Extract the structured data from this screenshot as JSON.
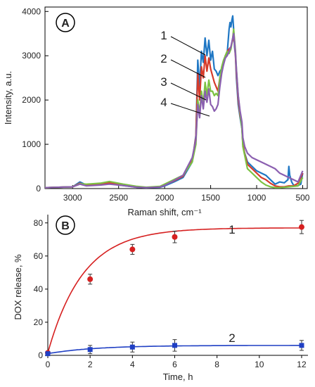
{
  "chart_data": [
    {
      "panel_label": "A",
      "type": "line",
      "xlabel": "Raman shift, cm⁻¹",
      "ylabel": "Intensity, a.u.",
      "xlim": [
        3300,
        450
      ],
      "ylim": [
        0,
        4100
      ],
      "x_reversed": true,
      "x_ticks": [
        3000,
        2500,
        2000,
        1500,
        1000,
        500
      ],
      "y_ticks": [
        0,
        1000,
        2000,
        3000,
        4000
      ],
      "grid": false,
      "series": [
        {
          "name": "1",
          "color": "#1f77c4",
          "x": [
            3300,
            3000,
            2920,
            2850,
            2700,
            2600,
            2450,
            2300,
            2200,
            2050,
            2000,
            1900,
            1800,
            1700,
            1660,
            1640,
            1620,
            1600,
            1580,
            1560,
            1540,
            1520,
            1500,
            1480,
            1460,
            1440,
            1420,
            1400,
            1380,
            1360,
            1340,
            1320,
            1300,
            1290,
            1280,
            1270,
            1260,
            1250,
            1240,
            1230,
            1220,
            1200,
            1180,
            1160,
            1150,
            1130,
            1100,
            1050,
            1000,
            950,
            900,
            850,
            800,
            750,
            700,
            660,
            650,
            640,
            620,
            600,
            560,
            520,
            500
          ],
          "y": [
            20,
            40,
            150,
            80,
            90,
            110,
            70,
            30,
            20,
            30,
            60,
            150,
            250,
            600,
            1200,
            2900,
            2300,
            3100,
            2850,
            3400,
            3000,
            3350,
            2900,
            3100,
            2700,
            2650,
            2550,
            2650,
            2700,
            2800,
            3000,
            3050,
            3600,
            3750,
            3650,
            3800,
            3900,
            3600,
            3200,
            3000,
            2500,
            1900,
            1600,
            1350,
            1000,
            800,
            600,
            500,
            400,
            350,
            300,
            200,
            100,
            150,
            130,
            200,
            500,
            300,
            150,
            80,
            60,
            100,
            350
          ]
        },
        {
          "name": "2",
          "color": "#d63b2a",
          "x": [
            3300,
            3000,
            2920,
            2850,
            2700,
            2600,
            2450,
            2300,
            2200,
            2050,
            2000,
            1900,
            1800,
            1700,
            1660,
            1640,
            1620,
            1600,
            1580,
            1560,
            1540,
            1520,
            1500,
            1480,
            1460,
            1440,
            1420,
            1400,
            1380,
            1360,
            1340,
            1320,
            1300,
            1280,
            1260,
            1250,
            1240,
            1230,
            1220,
            1200,
            1180,
            1160,
            1150,
            1130,
            1100,
            1050,
            1000,
            950,
            900,
            850,
            800,
            750,
            700,
            650,
            600,
            550,
            500
          ],
          "y": [
            20,
            40,
            120,
            70,
            100,
            130,
            80,
            40,
            25,
            40,
            80,
            170,
            280,
            650,
            1150,
            2600,
            2000,
            2750,
            2500,
            3000,
            2650,
            2950,
            2700,
            2550,
            2400,
            2300,
            2200,
            2500,
            2700,
            2850,
            3000,
            3100,
            3150,
            3200,
            3350,
            3550,
            3300,
            3000,
            2600,
            2000,
            1650,
            1400,
            1000,
            780,
            550,
            450,
            350,
            250,
            200,
            120,
            60,
            40,
            40,
            60,
            60,
            120,
            350
          ]
        },
        {
          "name": "3",
          "color": "#7cc242",
          "x": [
            3300,
            3000,
            2920,
            2850,
            2700,
            2600,
            2450,
            2300,
            2200,
            2050,
            2000,
            1900,
            1800,
            1700,
            1660,
            1640,
            1620,
            1600,
            1580,
            1560,
            1540,
            1520,
            1500,
            1480,
            1460,
            1440,
            1420,
            1400,
            1380,
            1360,
            1340,
            1320,
            1300,
            1280,
            1260,
            1250,
            1240,
            1230,
            1220,
            1200,
            1180,
            1160,
            1150,
            1130,
            1100,
            1050,
            1000,
            950,
            900,
            850,
            800,
            750,
            700,
            650,
            600,
            550,
            500
          ],
          "y": [
            20,
            40,
            110,
            100,
            120,
            160,
            100,
            50,
            30,
            50,
            100,
            200,
            300,
            600,
            1000,
            2000,
            1700,
            2200,
            1900,
            2400,
            2100,
            2450,
            2200,
            2200,
            2100,
            2150,
            2100,
            2500,
            2750,
            2900,
            3000,
            3100,
            3050,
            3150,
            3400,
            3600,
            3350,
            3100,
            2700,
            2100,
            1700,
            1350,
            950,
            750,
            450,
            350,
            250,
            150,
            80,
            40,
            20,
            20,
            30,
            40,
            50,
            60,
            250
          ]
        },
        {
          "name": "4",
          "color": "#8b5fb0",
          "x": [
            3300,
            3000,
            2920,
            2850,
            2700,
            2600,
            2450,
            2300,
            2200,
            2050,
            2000,
            1900,
            1800,
            1700,
            1660,
            1640,
            1620,
            1600,
            1580,
            1560,
            1540,
            1520,
            1500,
            1480,
            1460,
            1440,
            1420,
            1400,
            1380,
            1360,
            1340,
            1320,
            1300,
            1280,
            1260,
            1250,
            1240,
            1230,
            1220,
            1200,
            1180,
            1160,
            1150,
            1130,
            1100,
            1050,
            1000,
            950,
            900,
            850,
            800,
            750,
            700,
            650,
            600,
            550,
            500
          ],
          "y": [
            20,
            40,
            100,
            60,
            80,
            100,
            70,
            30,
            20,
            35,
            70,
            180,
            300,
            700,
            1100,
            1900,
            1600,
            2100,
            1800,
            2200,
            1950,
            2250,
            1900,
            1850,
            1750,
            1800,
            1900,
            2300,
            2600,
            2800,
            2950,
            3000,
            3100,
            3200,
            3400,
            3500,
            3300,
            3050,
            2700,
            2100,
            1750,
            1500,
            1150,
            950,
            800,
            700,
            650,
            600,
            550,
            500,
            450,
            350,
            300,
            250,
            200,
            150,
            400
          ]
        }
      ]
    },
    {
      "panel_label": "B",
      "type": "scatter",
      "xlabel": "Time, h",
      "ylabel": "DOX release, %",
      "xlim": [
        0,
        12.3
      ],
      "ylim": [
        0,
        85
      ],
      "x_ticks": [
        0,
        2,
        4,
        6,
        8,
        10,
        12
      ],
      "y_ticks": [
        0,
        20,
        40,
        60,
        80
      ],
      "grid": false,
      "series": [
        {
          "name": "1",
          "color": "#d62020",
          "marker": "circle",
          "x": [
            0,
            2,
            4,
            6,
            12
          ],
          "y": [
            1.5,
            46,
            64,
            71.5,
            77.5
          ],
          "error": [
            1,
            3,
            3,
            3.5,
            4
          ],
          "fit": {
            "model": "exponential_rise",
            "plateau": 77,
            "rate": 0.6
          }
        },
        {
          "name": "2",
          "color": "#1f3fc4",
          "marker": "square",
          "x": [
            0,
            2,
            4,
            6,
            12
          ],
          "y": [
            1,
            3.5,
            5,
            6,
            6
          ],
          "error": [
            1,
            2.5,
            3,
            3.5,
            3
          ],
          "fit": {
            "model": "exponential_rise",
            "plateau": 6,
            "rate": 0.45
          }
        }
      ]
    }
  ]
}
